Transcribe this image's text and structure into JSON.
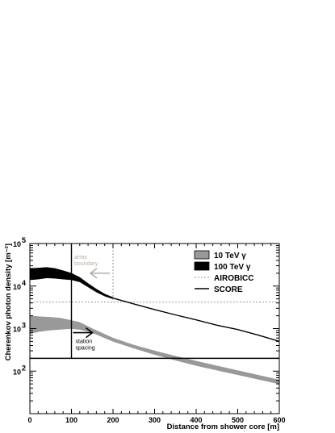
{
  "chart_data": {
    "type": "area",
    "xlabel": "Distance from shower core [m]",
    "ylabel": "Cherenkov photon density [m⁻²]",
    "xlim": [
      0,
      600
    ],
    "ylim": [
      10,
      100000
    ],
    "yscale": "log",
    "x_ticks": [
      0,
      100,
      200,
      300,
      400,
      500,
      600
    ],
    "x_tick_labels": [
      "0",
      "100",
      "200",
      "300",
      "400",
      "500",
      "600"
    ],
    "y_tick_labels": [
      {
        "base": "10",
        "exp": "2",
        "value": 100
      },
      {
        "base": "10",
        "exp": "3",
        "value": 1000
      },
      {
        "base": "10",
        "exp": "4",
        "value": 10000
      },
      {
        "base": "10",
        "exp": "5",
        "value": 100000
      }
    ],
    "legend_position": "top-right",
    "series": [
      {
        "name": "10 TeV γ",
        "kind": "band",
        "color": "#999999",
        "x": [
          0,
          25,
          50,
          75,
          100,
          120,
          150,
          200,
          250,
          300,
          350,
          400,
          450,
          500,
          550,
          600
        ],
        "lower": [
          760,
          860,
          920,
          960,
          1000,
          950,
          800,
          500,
          345,
          245,
          180,
          135,
          105,
          82,
          64,
          50
        ],
        "upper": [
          2000,
          1900,
          1850,
          1750,
          1550,
          1400,
          1000,
          600,
          410,
          300,
          225,
          172,
          133,
          103,
          80,
          62
        ]
      },
      {
        "name": "100 TeV γ",
        "kind": "band",
        "color": "#000000",
        "x": [
          0,
          20,
          40,
          60,
          80,
          100,
          120,
          140,
          160,
          180,
          200
        ],
        "lower": [
          14000,
          14500,
          15500,
          15200,
          14500,
          14000,
          12500,
          9500,
          7200,
          5800,
          5000
        ],
        "upper": [
          26000,
          26500,
          27500,
          26000,
          23000,
          20000,
          16000,
          11500,
          8500,
          6500,
          5400
        ]
      },
      {
        "name": "AIROBICC",
        "kind": "line",
        "style": "dashed",
        "color": "#999999",
        "vertical_x": 200,
        "horizontal_y": 4200
      },
      {
        "name": "SCORE",
        "kind": "line",
        "style": "solid",
        "color": "#000000",
        "vertical_x": 100,
        "horizontal_y": 200,
        "x": [
          200,
          250,
          300,
          350,
          400,
          450,
          500,
          550,
          600
        ],
        "y": [
          5200,
          3800,
          2800,
          2100,
          1600,
          1200,
          950,
          700,
          500
        ]
      }
    ],
    "annotations": [
      {
        "text_lines": [
          "array",
          "boundary"
        ],
        "color": "#b8aca4",
        "arrow": "left",
        "anchor_x": 200,
        "anchor_y": 20000
      },
      {
        "text_lines": [
          "station",
          "spacing"
        ],
        "color": "#000000",
        "arrow": "right",
        "anchor_x": 100,
        "anchor_y": 800
      }
    ]
  }
}
